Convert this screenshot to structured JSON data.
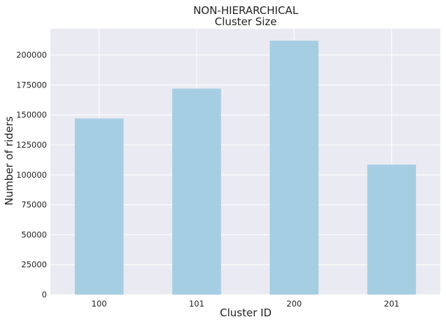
{
  "chart_data": {
    "type": "bar",
    "title": "NON-HIERARCHICAL",
    "subtitle": "Cluster Size",
    "xlabel": "Cluster ID",
    "ylabel": "Number of riders",
    "categories": [
      "100",
      "101",
      "200",
      "201"
    ],
    "values": [
      147000,
      172000,
      212000,
      108500
    ],
    "ylim": [
      0,
      222000
    ],
    "yticks": [
      0,
      25000,
      50000,
      75000,
      100000,
      125000,
      150000,
      175000,
      200000
    ],
    "ytick_labels": [
      "0",
      "25000",
      "50000",
      "75000",
      "100000",
      "125000",
      "150000",
      "175000",
      "200000"
    ],
    "grid": true,
    "legend": "none",
    "colors": {
      "bar": "#a6cee3",
      "background": "#eaeaf2",
      "grid": "#ffffff"
    }
  }
}
